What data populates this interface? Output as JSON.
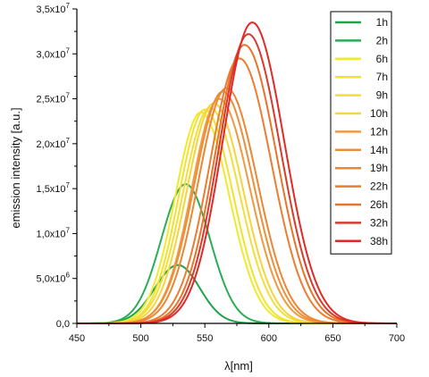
{
  "chart_data": {
    "type": "line",
    "title": "",
    "xlabel": "λ[nm]",
    "ylabel": "emission intensity [a.u.]",
    "xlim": [
      450,
      700
    ],
    "ylim": [
      0,
      35000000
    ],
    "x_ticks": [
      {
        "value": 450,
        "label": "450"
      },
      {
        "value": 500,
        "label": "500"
      },
      {
        "value": 550,
        "label": "550"
      },
      {
        "value": 600,
        "label": "600"
      },
      {
        "value": 650,
        "label": "650"
      },
      {
        "value": 700,
        "label": "700"
      }
    ],
    "y_ticks": [
      {
        "value": 0,
        "label": "0,0"
      },
      {
        "value": 5000000,
        "label": "5,0x10",
        "exp": "6"
      },
      {
        "value": 10000000,
        "label": "1,0x10",
        "exp": "7"
      },
      {
        "value": 15000000,
        "label": "1,5x10",
        "exp": "7"
      },
      {
        "value": 20000000,
        "label": "2,0x10",
        "exp": "7"
      },
      {
        "value": 25000000,
        "label": "2,5x10",
        "exp": "7"
      },
      {
        "value": 30000000,
        "label": "3,0x10",
        "exp": "7"
      },
      {
        "value": 35000000,
        "label": "3,5x10",
        "exp": "7"
      }
    ],
    "legend_position": "top-right",
    "grid": false,
    "series": [
      {
        "name": "1h",
        "color": "#1fa34a",
        "peak_x": 529,
        "peak_y": 6500000,
        "width_left": 18,
        "width_right": 17
      },
      {
        "name": "2h",
        "color": "#2bad55",
        "peak_x": 535,
        "peak_y": 15500000,
        "width_left": 19,
        "width_right": 19
      },
      {
        "name": "6h",
        "color": "#eeea30",
        "peak_x": 547,
        "peak_y": 23500000,
        "width_left": 20,
        "width_right": 22
      },
      {
        "name": "7h",
        "color": "#f3e22c",
        "peak_x": 550,
        "peak_y": 23800000,
        "width_left": 20,
        "width_right": 22
      },
      {
        "name": "9h",
        "color": "#f2de3a",
        "peak_x": 554,
        "peak_y": 24000000,
        "width_left": 21,
        "width_right": 23
      },
      {
        "name": "10h",
        "color": "#f6d43c",
        "peak_x": 557,
        "peak_y": 24500000,
        "width_left": 21,
        "width_right": 23
      },
      {
        "name": "12h",
        "color": "#ee9a40",
        "peak_x": 561,
        "peak_y": 25000000,
        "width_left": 21,
        "width_right": 24
      },
      {
        "name": "14h",
        "color": "#ec8f3a",
        "peak_x": 564,
        "peak_y": 25800000,
        "width_left": 22,
        "width_right": 24
      },
      {
        "name": "19h",
        "color": "#eb8634",
        "peak_x": 567,
        "peak_y": 26200000,
        "width_left": 22,
        "width_right": 24
      },
      {
        "name": "22h",
        "color": "#ea7d30",
        "peak_x": 577,
        "peak_y": 29500000,
        "width_left": 23,
        "width_right": 25
      },
      {
        "name": "26h",
        "color": "#e8742c",
        "peak_x": 581,
        "peak_y": 31000000,
        "width_left": 23,
        "width_right": 25
      },
      {
        "name": "32h",
        "color": "#d93a2e",
        "peak_x": 584,
        "peak_y": 32200000,
        "width_left": 23,
        "width_right": 25
      },
      {
        "name": "38h",
        "color": "#e02a26",
        "peak_x": 587,
        "peak_y": 33500000,
        "width_left": 23,
        "width_right": 25
      }
    ]
  }
}
